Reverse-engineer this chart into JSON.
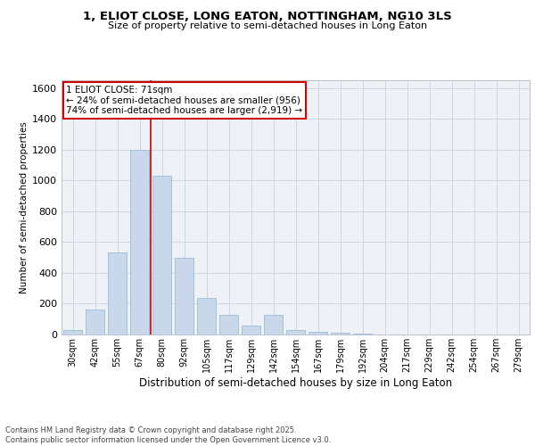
{
  "title": "1, ELIOT CLOSE, LONG EATON, NOTTINGHAM, NG10 3LS",
  "subtitle": "Size of property relative to semi-detached houses in Long Eaton",
  "xlabel": "Distribution of semi-detached houses by size in Long Eaton",
  "ylabel": "Number of semi-detached properties",
  "bins": [
    "30sqm",
    "42sqm",
    "55sqm",
    "67sqm",
    "80sqm",
    "92sqm",
    "105sqm",
    "117sqm",
    "129sqm",
    "142sqm",
    "154sqm",
    "167sqm",
    "179sqm",
    "192sqm",
    "204sqm",
    "217sqm",
    "229sqm",
    "242sqm",
    "254sqm",
    "267sqm",
    "279sqm"
  ],
  "values": [
    30,
    160,
    530,
    1200,
    1030,
    500,
    240,
    130,
    60,
    130,
    30,
    20,
    10,
    5,
    2,
    1,
    0,
    0,
    0,
    0,
    0
  ],
  "bar_color": "#c8d8ea",
  "bar_edge_color": "#9bbdd4",
  "grid_color": "#c8d4e0",
  "background_color": "#eef2f7",
  "fig_background": "#ffffff",
  "red_line_x": 3.5,
  "annotation_title": "1 ELIOT CLOSE: 71sqm",
  "annotation_line1": "← 24% of semi-detached houses are smaller (956)",
  "annotation_line2": "74% of semi-detached houses are larger (2,919) →",
  "annotation_box_color": "#ffffff",
  "annotation_box_edge": "#cc0000",
  "red_line_color": "#cc0000",
  "ylim": [
    0,
    1650
  ],
  "yticks": [
    0,
    200,
    400,
    600,
    800,
    1000,
    1200,
    1400,
    1600
  ],
  "footer1": "Contains HM Land Registry data © Crown copyright and database right 2025.",
  "footer2": "Contains public sector information licensed under the Open Government Licence v3.0."
}
